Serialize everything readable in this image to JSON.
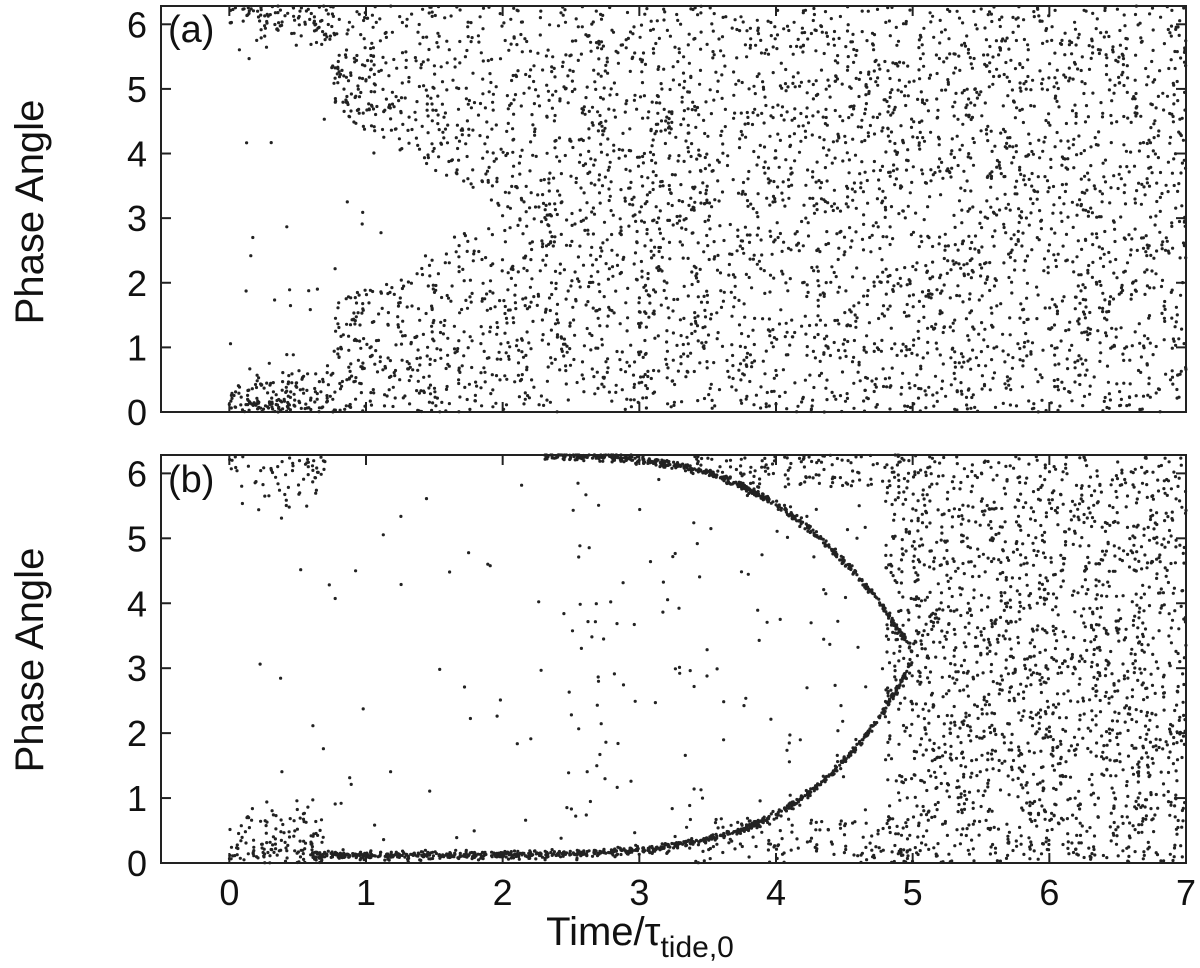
{
  "chart_data": [
    {
      "type": "scatter",
      "panel_label": "(a)",
      "ylabel": "Phase Angle",
      "xlabel": "",
      "xlim": [
        -0.5,
        7
      ],
      "ylim": [
        0,
        6.283
      ],
      "yticks": [
        0,
        1,
        2,
        3,
        4,
        5,
        6
      ],
      "grid": false,
      "legend": "none",
      "marker_color": "#222222",
      "description_points": "Dense random scatter of phase angles vs time. Before t≈2 points cluster near 0 and 2π (a 'bubble' of empty phase space between ~1 and ~5.3 that closes by t≈2); after t≈2 phases are uniformly scattered over [0, 2π].",
      "points": []
    },
    {
      "type": "scatter",
      "panel_label": "(b)",
      "ylabel": "Phase Angle",
      "xlabel": "Time/τ",
      "xlabel_sub": "tide,0",
      "xlim": [
        -0.5,
        7
      ],
      "ylim": [
        0,
        6.283
      ],
      "xticks": [
        0,
        1,
        2,
        3,
        4,
        5,
        6,
        7
      ],
      "yticks": [
        0,
        1,
        2,
        3,
        4,
        5,
        6
      ],
      "grid": false,
      "legend": "none",
      "marker_color": "#222222",
      "points": []
    }
  ],
  "labels": {
    "panel_a": "(a)",
    "panel_b": "(b)",
    "ylabel_a": "Phase Angle",
    "ylabel_b": "Phase Angle",
    "xlabel_main": "Time/τ",
    "xlabel_sub": "tide,0"
  }
}
